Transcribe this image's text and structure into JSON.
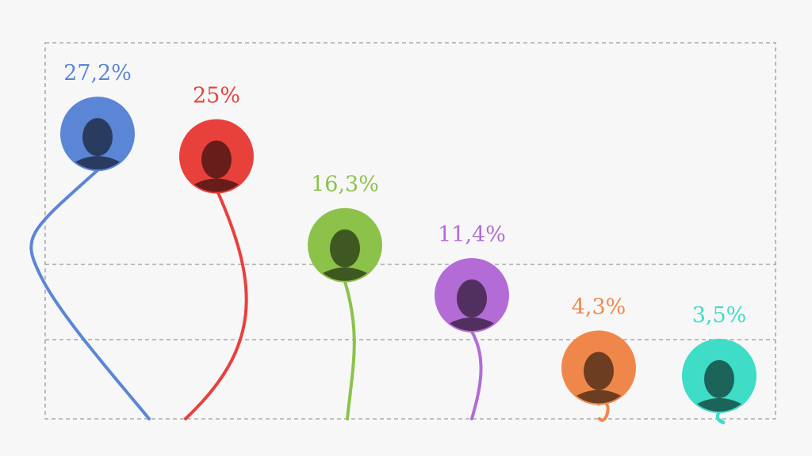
{
  "chart_data": {
    "type": "scatter",
    "series": [
      {
        "value_label": "27,2%",
        "value": 27.2,
        "color": "#5b86d6",
        "icon": "portrait-icon"
      },
      {
        "value_label": "25%",
        "value": 25.0,
        "color": "#e8413c",
        "icon": "portrait-icon"
      },
      {
        "value_label": "16,3%",
        "value": 16.3,
        "color": "#8cc24a",
        "icon": "portrait-icon"
      },
      {
        "value_label": "11,4%",
        "value": 11.4,
        "color": "#b36bd6",
        "icon": "portrait-icon"
      },
      {
        "value_label": "4,3%",
        "value": 4.3,
        "color": "#f0874a",
        "icon": "portrait-icon"
      },
      {
        "value_label": "3,5%",
        "value": 3.5,
        "color": "#3fdcc8",
        "icon": "portrait-icon"
      }
    ],
    "grid": true
  }
}
